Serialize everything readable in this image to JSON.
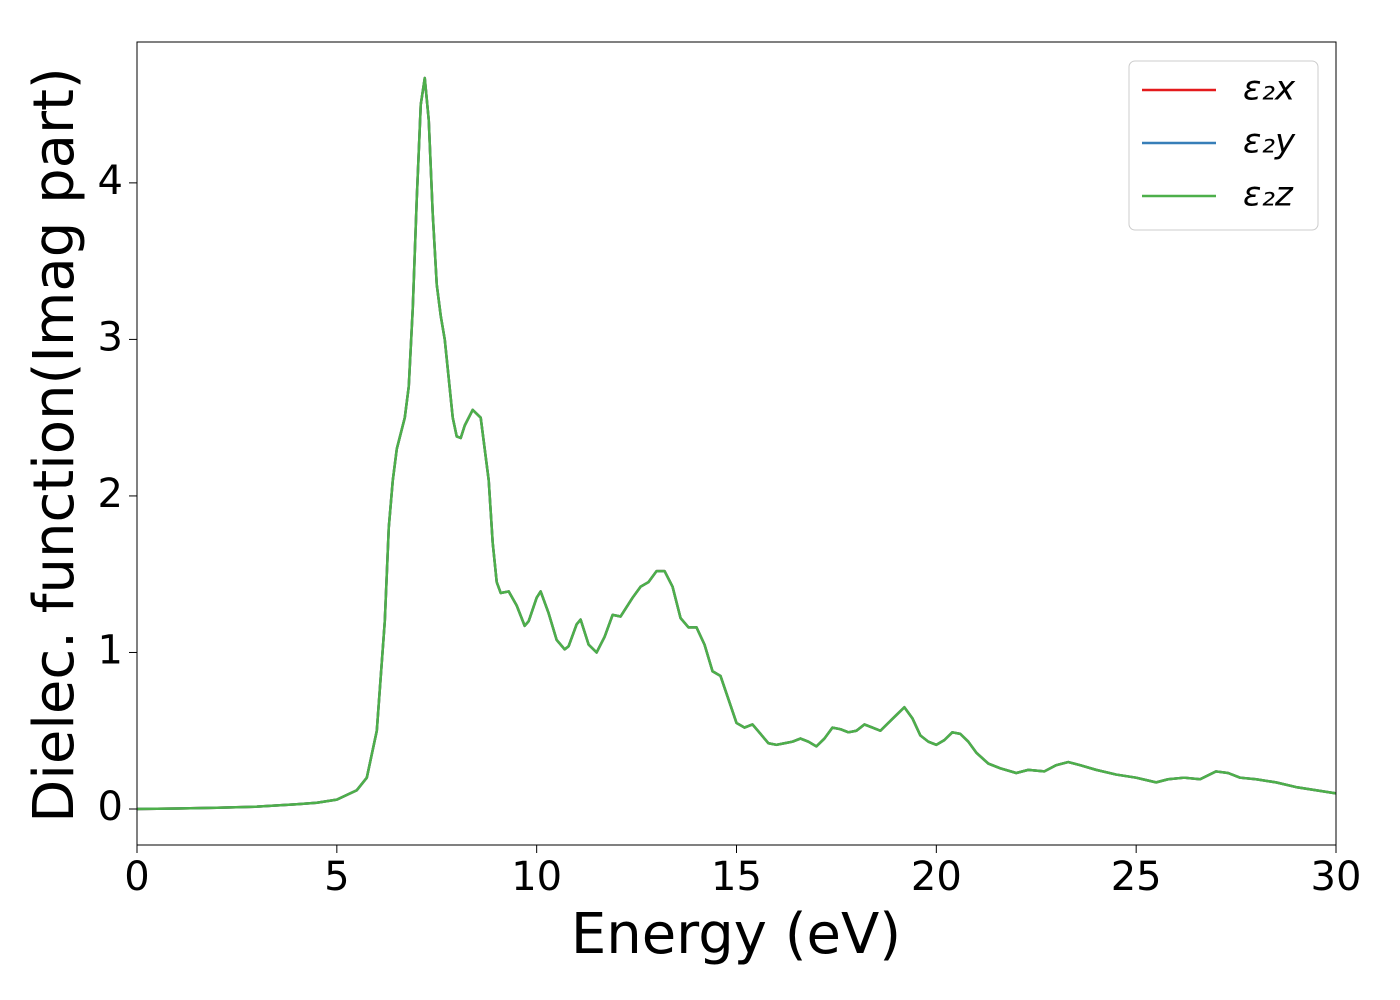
{
  "chart_data": {
    "type": "line",
    "xlabel": "Energy (eV)",
    "ylabel": "Dielec. function(Imag part)",
    "x": [
      0,
      1,
      2,
      3,
      4,
      4.5,
      5,
      5.5,
      5.75,
      6.0,
      6.2,
      6.3,
      6.4,
      6.5,
      6.7,
      6.8,
      6.9,
      7.0,
      7.1,
      7.2,
      7.3,
      7.4,
      7.5,
      7.6,
      7.7,
      7.8,
      7.9,
      8.0,
      8.1,
      8.2,
      8.4,
      8.6,
      8.8,
      8.9,
      9.0,
      9.1,
      9.3,
      9.5,
      9.7,
      9.8,
      10.0,
      10.1,
      10.3,
      10.5,
      10.7,
      10.8,
      11.0,
      11.1,
      11.3,
      11.5,
      11.7,
      11.9,
      12.1,
      12.4,
      12.6,
      12.8,
      13.0,
      13.2,
      13.4,
      13.6,
      13.8,
      14.0,
      14.2,
      14.4,
      14.6,
      14.8,
      15.0,
      15.2,
      15.4,
      15.6,
      15.8,
      16.0,
      16.2,
      16.4,
      16.6,
      16.8,
      17.0,
      17.2,
      17.4,
      17.6,
      17.8,
      18.0,
      18.2,
      18.4,
      18.6,
      18.8,
      19.0,
      19.2,
      19.4,
      19.6,
      19.8,
      20.0,
      20.2,
      20.4,
      20.6,
      20.8,
      21.0,
      21.3,
      21.6,
      22.0,
      22.3,
      22.7,
      23.0,
      23.3,
      23.6,
      24.0,
      24.5,
      25.0,
      25.5,
      25.8,
      26.2,
      26.6,
      27.0,
      27.3,
      27.6,
      28.0,
      28.5,
      29.0,
      29.5,
      30.0
    ],
    "series": [
      {
        "name": "ε₂x",
        "color": "#e41a1c",
        "values": [
          0,
          0.003,
          0.008,
          0.015,
          0.03,
          0.04,
          0.06,
          0.12,
          0.2,
          0.5,
          1.2,
          1.8,
          2.1,
          2.3,
          2.5,
          2.7,
          3.2,
          3.9,
          4.5,
          4.67,
          4.4,
          3.8,
          3.35,
          3.15,
          3.0,
          2.75,
          2.5,
          2.38,
          2.37,
          2.45,
          2.55,
          2.5,
          2.1,
          1.7,
          1.45,
          1.38,
          1.39,
          1.3,
          1.17,
          1.2,
          1.35,
          1.39,
          1.25,
          1.08,
          1.02,
          1.04,
          1.18,
          1.21,
          1.05,
          1.0,
          1.1,
          1.24,
          1.23,
          1.35,
          1.42,
          1.45,
          1.52,
          1.52,
          1.42,
          1.22,
          1.16,
          1.16,
          1.05,
          0.88,
          0.85,
          0.7,
          0.55,
          0.52,
          0.54,
          0.48,
          0.42,
          0.41,
          0.42,
          0.43,
          0.45,
          0.43,
          0.4,
          0.45,
          0.52,
          0.51,
          0.49,
          0.5,
          0.54,
          0.52,
          0.5,
          0.55,
          0.6,
          0.65,
          0.58,
          0.47,
          0.43,
          0.41,
          0.44,
          0.49,
          0.48,
          0.43,
          0.36,
          0.29,
          0.26,
          0.23,
          0.25,
          0.24,
          0.28,
          0.3,
          0.28,
          0.25,
          0.22,
          0.2,
          0.17,
          0.19,
          0.2,
          0.19,
          0.24,
          0.23,
          0.2,
          0.19,
          0.17,
          0.14,
          0.12,
          0.1
        ]
      },
      {
        "name": "ε₂y",
        "color": "#377eb8",
        "values": [
          0,
          0.003,
          0.008,
          0.015,
          0.03,
          0.04,
          0.06,
          0.12,
          0.2,
          0.5,
          1.2,
          1.8,
          2.1,
          2.3,
          2.5,
          2.7,
          3.2,
          3.9,
          4.5,
          4.67,
          4.4,
          3.8,
          3.35,
          3.15,
          3.0,
          2.75,
          2.5,
          2.38,
          2.37,
          2.45,
          2.55,
          2.5,
          2.1,
          1.7,
          1.45,
          1.38,
          1.39,
          1.3,
          1.17,
          1.2,
          1.35,
          1.39,
          1.25,
          1.08,
          1.02,
          1.04,
          1.18,
          1.21,
          1.05,
          1.0,
          1.1,
          1.24,
          1.23,
          1.35,
          1.42,
          1.45,
          1.52,
          1.52,
          1.42,
          1.22,
          1.16,
          1.16,
          1.05,
          0.88,
          0.85,
          0.7,
          0.55,
          0.52,
          0.54,
          0.48,
          0.42,
          0.41,
          0.42,
          0.43,
          0.45,
          0.43,
          0.4,
          0.45,
          0.52,
          0.51,
          0.49,
          0.5,
          0.54,
          0.52,
          0.5,
          0.55,
          0.6,
          0.65,
          0.58,
          0.47,
          0.43,
          0.41,
          0.44,
          0.49,
          0.48,
          0.43,
          0.36,
          0.29,
          0.26,
          0.23,
          0.25,
          0.24,
          0.28,
          0.3,
          0.28,
          0.25,
          0.22,
          0.2,
          0.17,
          0.19,
          0.2,
          0.19,
          0.24,
          0.23,
          0.2,
          0.19,
          0.17,
          0.14,
          0.12,
          0.1
        ]
      },
      {
        "name": "ε₂z",
        "color": "#4daf4a",
        "values": [
          0,
          0.003,
          0.008,
          0.015,
          0.03,
          0.04,
          0.06,
          0.12,
          0.2,
          0.5,
          1.2,
          1.8,
          2.1,
          2.3,
          2.5,
          2.7,
          3.2,
          3.9,
          4.5,
          4.67,
          4.4,
          3.8,
          3.35,
          3.15,
          3.0,
          2.75,
          2.5,
          2.38,
          2.37,
          2.45,
          2.55,
          2.5,
          2.1,
          1.7,
          1.45,
          1.38,
          1.39,
          1.3,
          1.17,
          1.2,
          1.35,
          1.39,
          1.25,
          1.08,
          1.02,
          1.04,
          1.18,
          1.21,
          1.05,
          1.0,
          1.1,
          1.24,
          1.23,
          1.35,
          1.42,
          1.45,
          1.52,
          1.52,
          1.42,
          1.22,
          1.16,
          1.16,
          1.05,
          0.88,
          0.85,
          0.7,
          0.55,
          0.52,
          0.54,
          0.48,
          0.42,
          0.41,
          0.42,
          0.43,
          0.45,
          0.43,
          0.4,
          0.45,
          0.52,
          0.51,
          0.49,
          0.5,
          0.54,
          0.52,
          0.5,
          0.55,
          0.6,
          0.65,
          0.58,
          0.47,
          0.43,
          0.41,
          0.44,
          0.49,
          0.48,
          0.43,
          0.36,
          0.29,
          0.26,
          0.23,
          0.25,
          0.24,
          0.28,
          0.3,
          0.28,
          0.25,
          0.22,
          0.2,
          0.17,
          0.19,
          0.2,
          0.19,
          0.24,
          0.23,
          0.2,
          0.19,
          0.17,
          0.14,
          0.12,
          0.1
        ]
      }
    ],
    "xlim": [
      0,
      30
    ],
    "xticks": [
      0,
      5,
      10,
      15,
      20,
      25,
      30
    ],
    "ylim": [
      -0.23,
      4.9
    ],
    "yticks": [
      0,
      1,
      2,
      3,
      4
    ],
    "legend": "upper right",
    "grid": false
  }
}
